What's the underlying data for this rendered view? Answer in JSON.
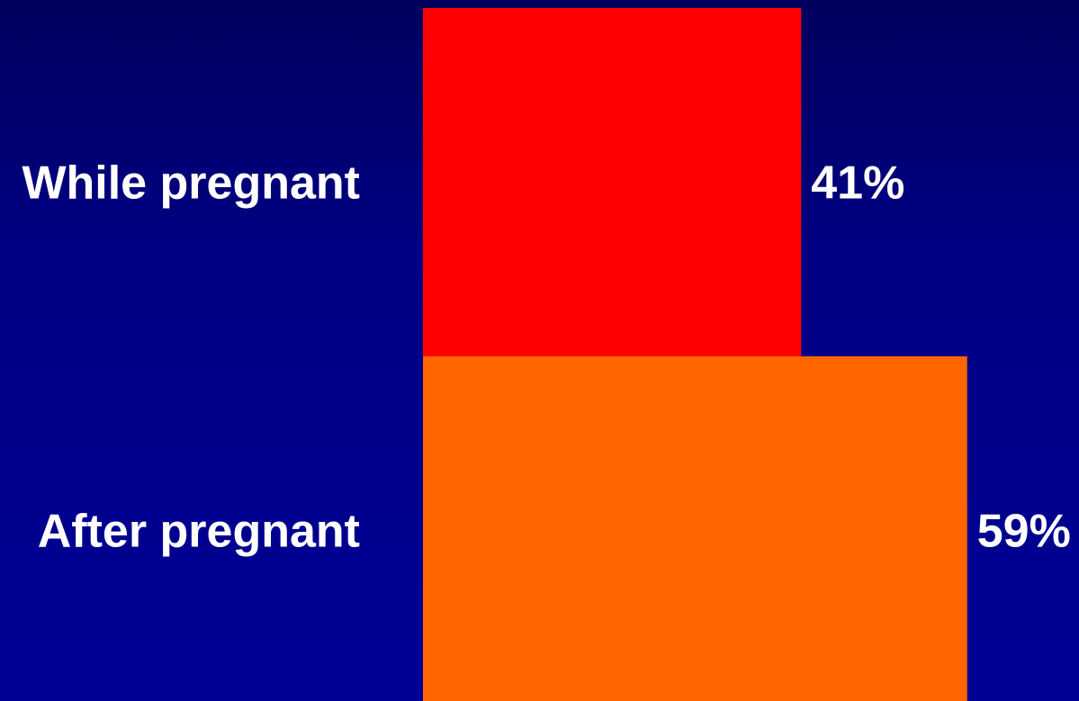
{
  "chart_data": {
    "type": "bar",
    "orientation": "horizontal",
    "categories": [
      "While pregnant",
      "After pregnant"
    ],
    "values": [
      41,
      59
    ],
    "value_labels": [
      "41%",
      "59%"
    ],
    "unit": "%",
    "xlim": [
      0,
      100
    ],
    "title": "",
    "xlabel": "",
    "ylabel": "",
    "grid": false,
    "legend": "none",
    "bar_colors": [
      "#ff0000",
      "#ff6600"
    ],
    "background_color": "#000090"
  }
}
